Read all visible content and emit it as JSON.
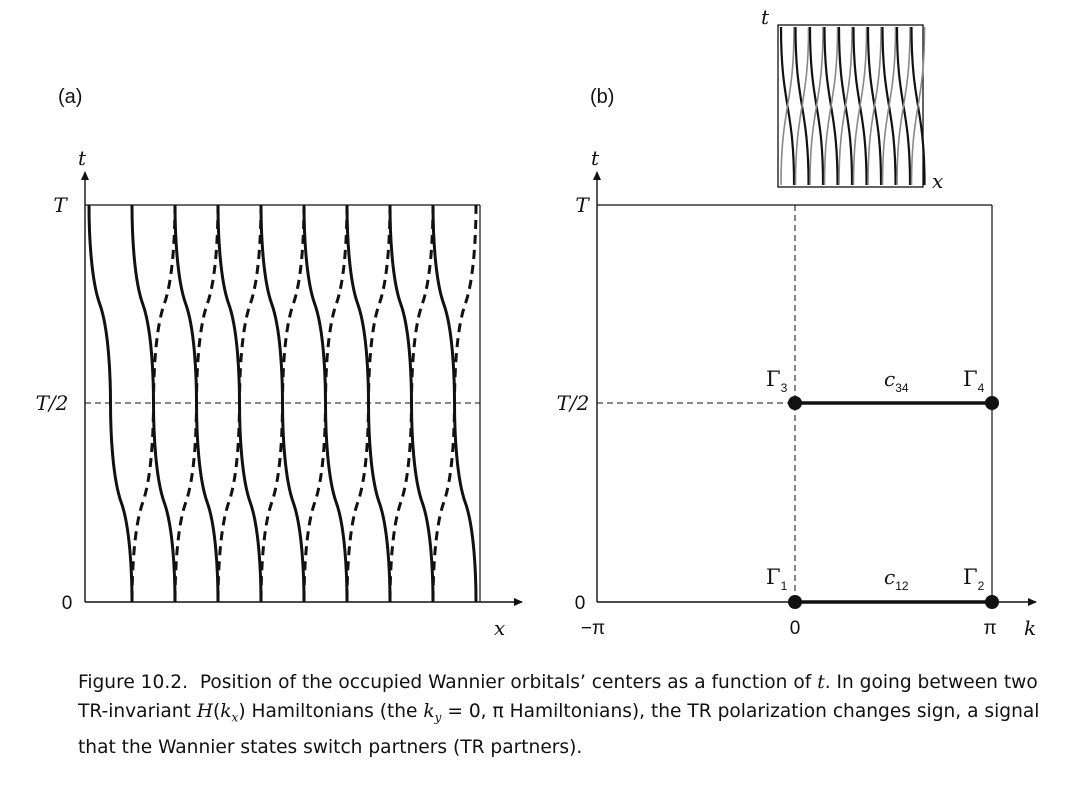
{
  "panel_a": {
    "label": "(a)",
    "y_axis_label": "t",
    "x_axis_label": "x",
    "y_ticks": [
      "T",
      "T/2",
      "0"
    ]
  },
  "panel_b": {
    "label": "(b)",
    "y_axis_label": "t",
    "x_axis_label": "k",
    "y_ticks": [
      "T",
      "T/2",
      "0"
    ],
    "x_ticks": [
      "−π",
      "0",
      "π"
    ],
    "points": [
      {
        "name": "Γ",
        "sub": "1"
      },
      {
        "name": "Γ",
        "sub": "2"
      },
      {
        "name": "Γ",
        "sub": "3"
      },
      {
        "name": "Γ",
        "sub": "4"
      }
    ],
    "segments": [
      {
        "name": "c",
        "sub": "12"
      },
      {
        "name": "c",
        "sub": "34"
      }
    ],
    "inset": {
      "y_axis_label": "t",
      "x_axis_label": "x"
    }
  },
  "caption": "Figure 10.2.  Position of the occupied Wannier orbitals’ centers as a function of t. In going between two TR-invariant H(kx) Hamiltonians (the ky = 0, π Hamiltonians), the TR polarization changes sign, a signal that the Wannier states switch partners (TR partners)."
}
